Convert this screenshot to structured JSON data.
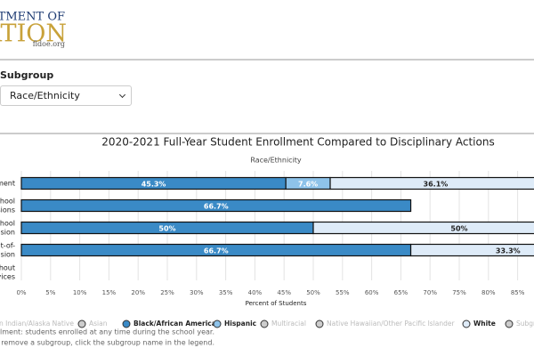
{
  "header": {
    "logo_top": "DEPARTMENT OF",
    "logo_main": "EDUCATION",
    "logo_url": "fldoe.org"
  },
  "filter": {
    "label": "Subgroup",
    "selected": "Race/Ethnicity"
  },
  "chart_data": {
    "type": "stacked-bar-horizontal",
    "title": "2020-2021 Full-Year Student Enrollment Compared to Disciplinary Actions",
    "subtitle": "Race/Ethnicity",
    "x_label": "Percent of Students",
    "categories": [
      [
        "Enrollment"
      ],
      [
        "Out-of-School",
        "Suspensions"
      ],
      [
        "In-School",
        "Suspension"
      ],
      [
        "Out-of-",
        "Expulsion"
      ],
      [
        "Expulsion Without",
        "Services"
      ]
    ],
    "series": [
      {
        "name": "American Indian/Alaska Native",
        "color": "#cccccc",
        "hidden": true,
        "values": [
          null,
          null,
          null,
          null,
          null
        ]
      },
      {
        "name": "Asian",
        "color": "#cccccc",
        "hidden": true,
        "values": [
          null,
          null,
          null,
          null,
          null
        ]
      },
      {
        "name": "Black/African American",
        "color": "#3a8ac6",
        "label_color": "#ffffff",
        "values": [
          45.3,
          66.7,
          50,
          66.7,
          null
        ],
        "value_labels": [
          "45.3%",
          "66.7%",
          "50%",
          "66.7%",
          null
        ]
      },
      {
        "name": "Hispanic",
        "color": "#8ec3ea",
        "label_color": "#ffffff",
        "values": [
          7.6,
          null,
          null,
          null,
          null
        ],
        "value_labels": [
          "7.6%",
          null,
          null,
          null,
          null
        ]
      },
      {
        "name": "Multiracial",
        "color": "#cccccc",
        "hidden": true,
        "values": [
          null,
          null,
          null,
          null,
          null
        ]
      },
      {
        "name": "Native Hawaiian/Other Pacific Islander",
        "color": "#cccccc",
        "hidden": true,
        "values": [
          null,
          null,
          null,
          null,
          null
        ]
      },
      {
        "name": "White",
        "color": "#deebf8",
        "label_color": "#222222",
        "values": [
          36.1,
          null,
          50,
          33.3,
          null
        ],
        "value_labels": [
          "36.1%",
          null,
          "50%",
          "33.3%",
          null
        ]
      },
      {
        "name": "Subgroup",
        "color": "#cccccc",
        "hidden": true,
        "values": [
          null,
          null,
          null,
          null,
          null
        ]
      }
    ],
    "xlim": [
      0,
      100
    ],
    "xticks": [
      {
        "value": 0,
        "label": "0%"
      },
      {
        "value": 5,
        "label": "5%"
      },
      {
        "value": 10,
        "label": "10%"
      },
      {
        "value": 15,
        "label": "15%"
      },
      {
        "value": 20,
        "label": "20%"
      },
      {
        "value": 25,
        "label": "25%"
      },
      {
        "value": 30,
        "label": "30%"
      },
      {
        "value": 35,
        "label": "35%"
      },
      {
        "value": 40,
        "label": "40%"
      },
      {
        "value": 45,
        "label": "45%"
      },
      {
        "value": 50,
        "label": "50%"
      },
      {
        "value": 55,
        "label": "55%"
      },
      {
        "value": 60,
        "label": "60%"
      },
      {
        "value": 65,
        "label": "65%"
      },
      {
        "value": 70,
        "label": "70%"
      },
      {
        "value": 75,
        "label": "75%"
      },
      {
        "value": 80,
        "label": "80%"
      },
      {
        "value": 85,
        "label": "85%"
      }
    ],
    "grid": true,
    "legend": "bottom",
    "notes": [
      "Enrollment: students enrolled at any time during the school year.",
      "To add or remove a subgroup, click the subgroup name in the legend."
    ]
  }
}
